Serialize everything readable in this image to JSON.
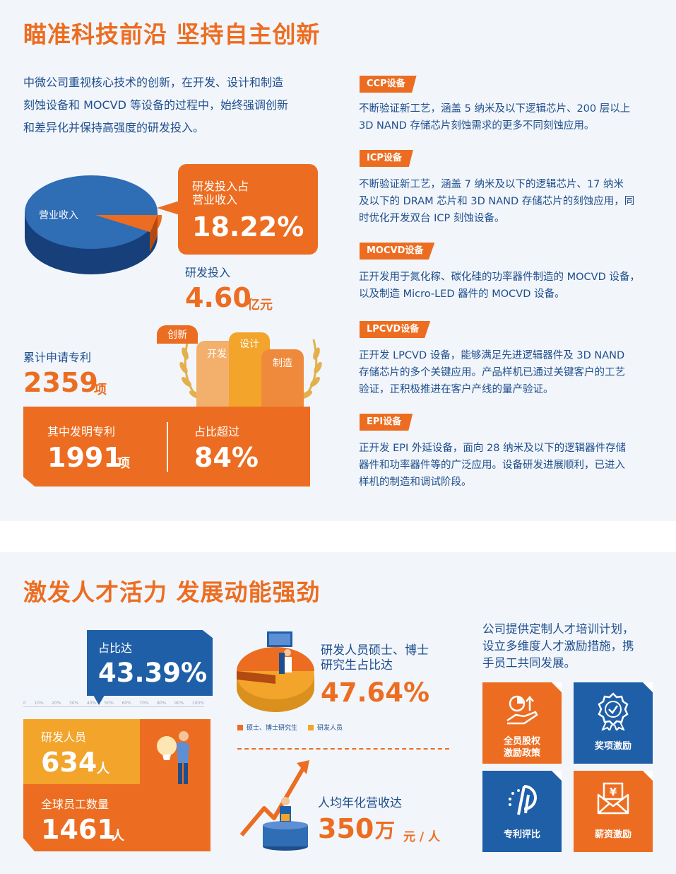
{
  "section1": {
    "title": "瞄准科技前沿  坚持自主创新",
    "intro": [
      "中微公司重视核心技术的创新，在开发、设计和制造",
      "刻蚀设备和 MOCVD 等设备的过程中，始终强调创新",
      "和差异化并保持高强度的研发投入。"
    ],
    "pie_label": "营业收入",
    "callout_label_1": "研发投入占",
    "callout_label_2": "营业收入",
    "callout_value": "18.22%",
    "rd_label": "研发投入",
    "rd_value": "4.60",
    "rd_unit": "亿元",
    "bars": [
      "创新",
      "开发",
      "设计",
      "制造"
    ],
    "patent_label": "累计申请专利",
    "patent_value": "2359",
    "patent_unit": "项",
    "invention_label": "其中发明专利",
    "invention_value": "1991",
    "invention_unit": "项",
    "share_label": "占比超过",
    "share_value": "84%",
    "equipment": [
      {
        "tag": "CCP设备",
        "desc": [
          "不断验证新工艺，涵盖 5 纳米及以下逻辑芯片、200 层以上",
          "3D NAND 存储芯片刻蚀需求的更多不同刻蚀应用。"
        ]
      },
      {
        "tag": "ICP设备",
        "desc": [
          "不断验证新工艺，涵盖 7 纳米及以下的逻辑芯片、17 纳米",
          "及以下的 DRAM 芯片和 3D NAND 存储芯片的刻蚀应用，同",
          "时优化开发双台 ICP 刻蚀设备。"
        ]
      },
      {
        "tag": "MOCVD设备",
        "desc": [
          "正开发用于氮化稼、碳化硅的功率器件制造的 MOCVD 设备，",
          "以及制造 Micro-LED 器件的 MOCVD 设备。"
        ]
      },
      {
        "tag": "LPCVD设备",
        "desc": [
          "正开发 LPCVD 设备，能够满足先进逻辑器件及 3D NAND",
          "存储芯片的多个关键应用。产品样机已通过关键客户的工艺",
          "验证，正积极推进在客户产线的量产验证。"
        ]
      },
      {
        "tag": "EPI设备",
        "desc": [
          "正开发 EPI 外延设备，面向 28 纳米及以下的逻辑器件存储",
          "器件和功率器件等的广泛应用。设备研发进展顺利，已进入",
          "样机的制造和调试阶段。"
        ]
      }
    ]
  },
  "section2": {
    "title": "激发人才活力  发展动能强劲",
    "ratio_label": "占比达",
    "ratio_value": "43.39%",
    "scale_ticks": [
      "0",
      "10%",
      "20%",
      "30%",
      "40%",
      "50%",
      "60%",
      "70%",
      "80%",
      "90%",
      "100%"
    ],
    "rd_staff_label": "研发人员",
    "rd_staff_value": "634",
    "rd_staff_unit": "人",
    "global_label": "全球员工数量",
    "global_value": "1461",
    "global_unit": "人",
    "degree_label_1": "研发人员硕士、博士",
    "degree_label_2": "研究生占比达",
    "degree_value": "47.64%",
    "degree_share": 0.4764,
    "legend": [
      "硕士、博士研究生",
      "研发人员"
    ],
    "revenue_label": "人均年化营收达",
    "revenue_value": "350",
    "revenue_unit": "万",
    "revenue_suffix": "元 / 人",
    "talent_text": [
      "公司提供定制人才培训计划，",
      "设立多维度人才激励措施，携",
      "手员工共同发展。"
    ],
    "incentives": [
      {
        "label1": "全员股权",
        "label2": "激励政策",
        "icon": "hand-chart-icon"
      },
      {
        "label1": "奖项激励",
        "label2": "",
        "icon": "medal-icon"
      },
      {
        "label1": "专利评比",
        "label2": "",
        "icon": "patent-icon"
      },
      {
        "label1": "薪资激励",
        "label2": "",
        "icon": "salary-envelope-icon"
      }
    ]
  },
  "colors": {
    "orange": "#ec6d21",
    "blue": "#1f5fa8",
    "navy": "#1f4e8c",
    "yellow": "#f2a42b",
    "panel": "#f2f6fb"
  }
}
